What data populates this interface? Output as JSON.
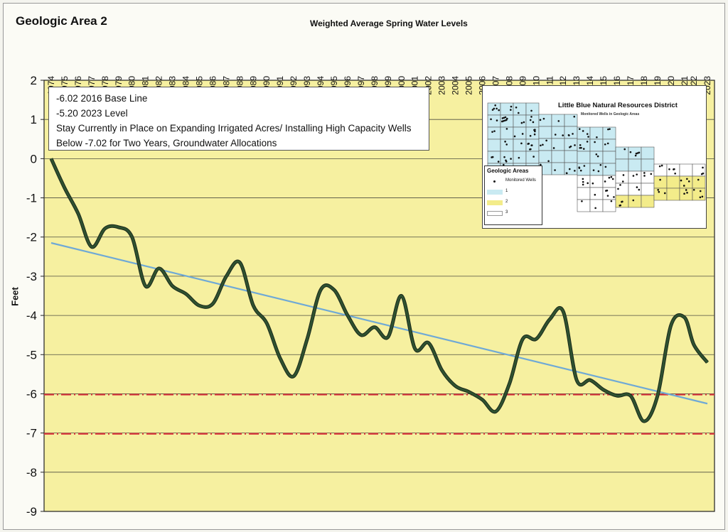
{
  "chart_data": {
    "type": "line",
    "title": "Weighted Average Spring Water Levels",
    "page_title": "Geologic Area 2",
    "ylabel": "Feet",
    "ylim": [
      -9,
      2
    ],
    "yticks": [
      "2",
      "1",
      "0",
      "-1",
      "-2",
      "-3",
      "-4",
      "-5",
      "-6",
      "-7",
      "-8",
      "-9"
    ],
    "x": [
      "1974",
      "1975",
      "1976",
      "1977",
      "1978",
      "1979",
      "1980",
      "1981",
      "1982",
      "1983",
      "1984",
      "1985",
      "1986",
      "1987",
      "1988",
      "1989",
      "1990",
      "1991",
      "1992",
      "1993",
      "1994",
      "1995",
      "1996",
      "1997",
      "1998",
      "1999",
      "2000",
      "2001",
      "2002",
      "2003",
      "2004",
      "2005",
      "2006",
      "2007",
      "2008",
      "2009",
      "2010",
      "2011",
      "2012",
      "2013",
      "2014",
      "2015",
      "2016",
      "2017",
      "2018",
      "2019",
      "2020",
      "2021",
      "2022",
      "2023"
    ],
    "x_positions": [
      0,
      1,
      2,
      3,
      4,
      5,
      6,
      7,
      8,
      9,
      10,
      11,
      12,
      13,
      14,
      15,
      16,
      17,
      18,
      19,
      20,
      21,
      22,
      23,
      24,
      25,
      26,
      27,
      28,
      29,
      30,
      31,
      32,
      33,
      34,
      35,
      36,
      37,
      38,
      39,
      40,
      41,
      42,
      43,
      44,
      45,
      46,
      47,
      47.7,
      48.7
    ],
    "series": [
      {
        "name": "",
        "values": [
          0.0,
          -0.75,
          -1.4,
          -2.25,
          -1.78,
          -1.75,
          -2.0,
          -3.25,
          -2.8,
          -3.25,
          -3.45,
          -3.75,
          -3.7,
          -3.0,
          -2.65,
          -3.75,
          -4.2,
          -5.1,
          -5.55,
          -4.6,
          -3.35,
          -3.35,
          -4.0,
          -4.5,
          -4.3,
          -4.55,
          -3.5,
          -4.85,
          -4.7,
          -5.4,
          -5.8,
          -5.95,
          -6.15,
          -6.45,
          -5.75,
          -4.6,
          -4.6,
          -4.1,
          -3.9,
          -5.65,
          -5.65,
          -5.9,
          -6.05,
          -6.05,
          -6.7,
          -6.05,
          -4.25,
          -4.05,
          -4.75,
          -5.2
        ],
        "color": "#2f5230"
      }
    ],
    "trendline": {
      "from": {
        "x": 0,
        "y": -2.15
      },
      "to": {
        "x": 48.7,
        "y": -6.25
      },
      "color": "#6fa9d6"
    },
    "reference_lines": [
      {
        "value": -6.02,
        "color": "#d9343c"
      },
      {
        "value": -7.02,
        "color": "#d9343c"
      }
    ],
    "plot_background": "#f6f0a0",
    "grid": true,
    "notes": [
      "-6.02 2016 Base Line",
      "-5.20 2023 Level",
      "Stay Currently in Place on Expanding Irrigated Acres/ Installing High Capacity Wells",
      "Below -7.02 for Two Years, Groundwater Allocations"
    ]
  },
  "inset_map": {
    "title": "Little Blue Natural Resources District",
    "subtitle": "Monitored Wells in Geologic Areas",
    "legend_title": "Geologic Areas",
    "legend": [
      {
        "label": "Monitored Wells",
        "kind": "dot"
      },
      {
        "label": "1",
        "color": "#c9eaf2"
      },
      {
        "label": "2",
        "color": "#f3ec8a"
      },
      {
        "label": "3",
        "color": "#ffffff"
      }
    ]
  }
}
